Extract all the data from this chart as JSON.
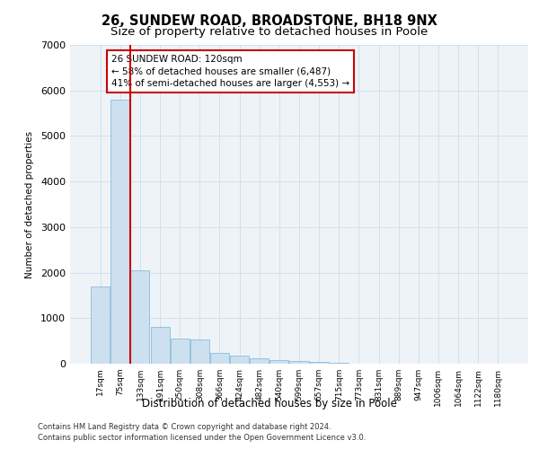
{
  "title1": "26, SUNDEW ROAD, BROADSTONE, BH18 9NX",
  "title2": "Size of property relative to detached houses in Poole",
  "xlabel": "Distribution of detached houses by size in Poole",
  "ylabel": "Number of detached properties",
  "bins": [
    "17sqm",
    "75sqm",
    "133sqm",
    "191sqm",
    "250sqm",
    "308sqm",
    "366sqm",
    "424sqm",
    "482sqm",
    "540sqm",
    "599sqm",
    "657sqm",
    "715sqm",
    "773sqm",
    "831sqm",
    "889sqm",
    "947sqm",
    "1006sqm",
    "1064sqm",
    "1122sqm",
    "1180sqm"
  ],
  "values": [
    1700,
    5800,
    2050,
    800,
    560,
    540,
    230,
    175,
    120,
    70,
    50,
    30,
    20,
    0,
    0,
    0,
    0,
    0,
    0,
    0,
    0
  ],
  "bar_color": "#cce0f0",
  "bar_edge_color": "#7ab4d4",
  "annotation_text": "26 SUNDEW ROAD: 120sqm\n← 58% of detached houses are smaller (6,487)\n41% of semi-detached houses are larger (4,553) →",
  "annotation_box_color": "#ffffff",
  "annotation_border_color": "#cc0000",
  "red_line_bin_index": 1.5,
  "ylim": [
    0,
    7000
  ],
  "yticks": [
    0,
    1000,
    2000,
    3000,
    4000,
    5000,
    6000,
    7000
  ],
  "footer_line1": "Contains HM Land Registry data © Crown copyright and database right 2024.",
  "footer_line2": "Contains public sector information licensed under the Open Government Licence v3.0.",
  "plot_bg_color": "#eef3f8",
  "grid_color": "#c8d8e8"
}
